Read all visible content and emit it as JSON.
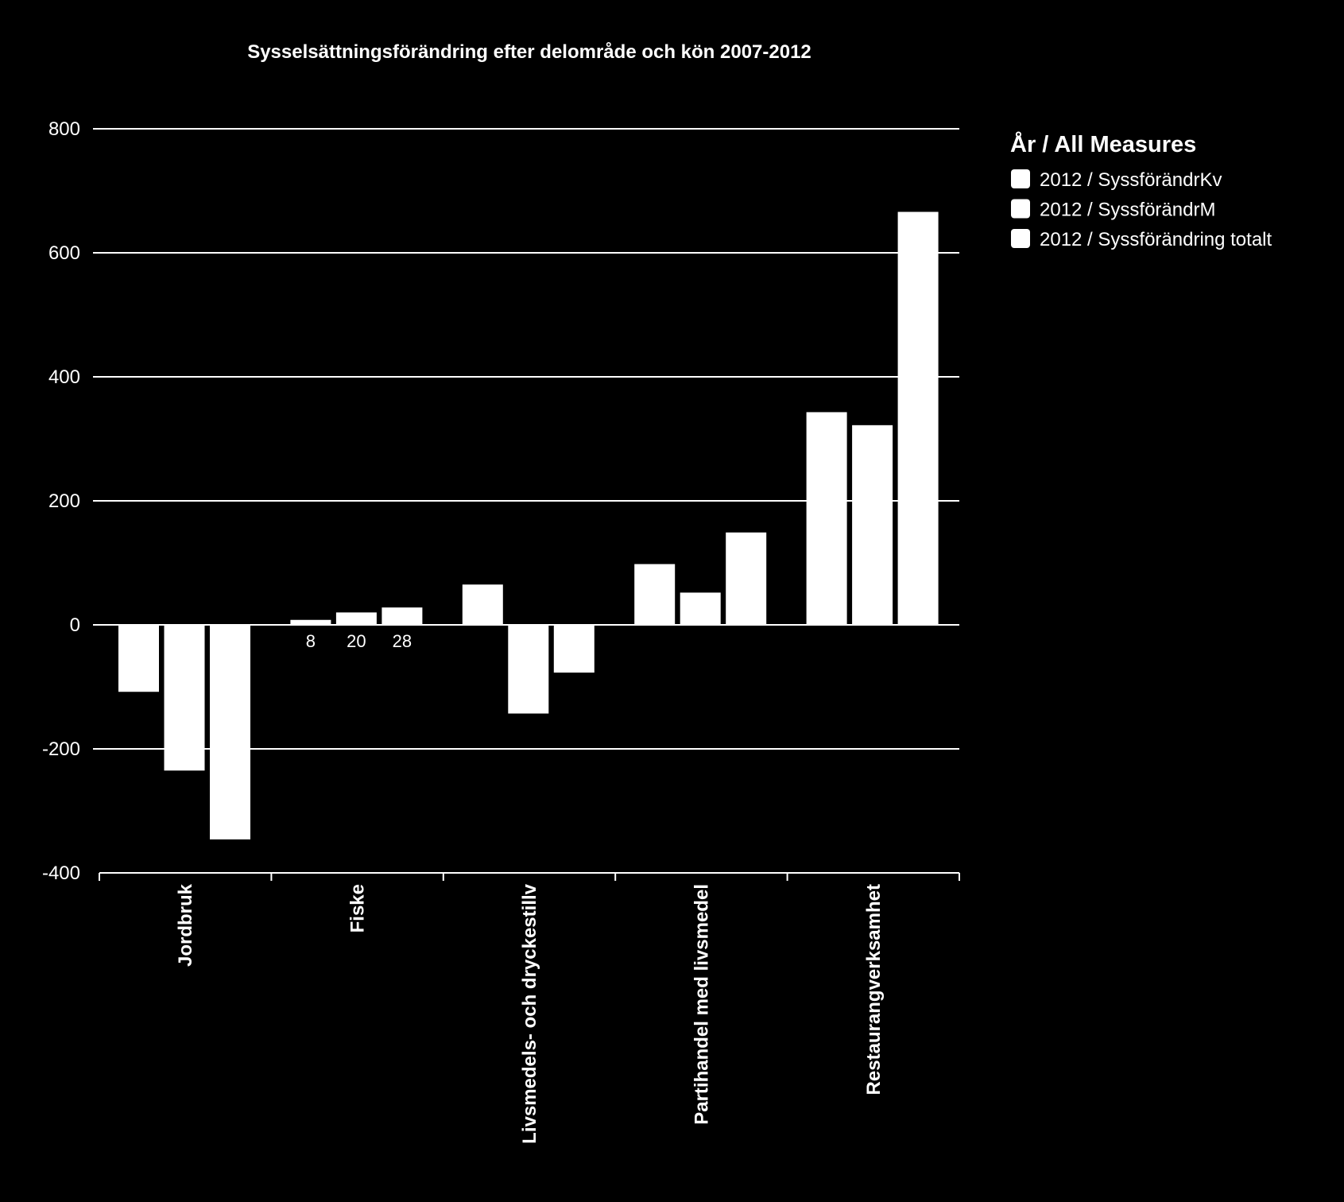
{
  "chart_data": {
    "type": "bar",
    "title": "Sysselsättningsförändring efter delområde och kön 2007-2012",
    "xlabel": "",
    "ylabel": "",
    "ylim": [
      -400,
      800
    ],
    "yticks": [
      800,
      600,
      400,
      200,
      0,
      -200,
      -400
    ],
    "grid": true,
    "legend_position": "right",
    "legend_title": "År / All Measures",
    "categories": [
      "Jordbruk",
      "Fiske",
      "Livsmedels- och dryckestillv",
      "Partihandel med livsmedel",
      "Restaurangverksamhet"
    ],
    "series": [
      {
        "name": "2012 / SyssförändrKv",
        "color": "#ffffff",
        "values": [
          -108,
          8,
          65,
          98,
          343
        ]
      },
      {
        "name": "2012 / SyssförändrM",
        "color": "#ffffff",
        "values": [
          -235,
          20,
          -143,
          52,
          322
        ]
      },
      {
        "name": "2012 / Syssförändring totalt",
        "color": "#ffffff",
        "values": [
          -346,
          28,
          -77,
          149,
          666
        ]
      }
    ],
    "data_labels": [
      {
        "series": 0,
        "category": 1,
        "text": "8"
      },
      {
        "series": 1,
        "category": 1,
        "text": "20"
      },
      {
        "series": 2,
        "category": 1,
        "text": "28"
      }
    ]
  }
}
